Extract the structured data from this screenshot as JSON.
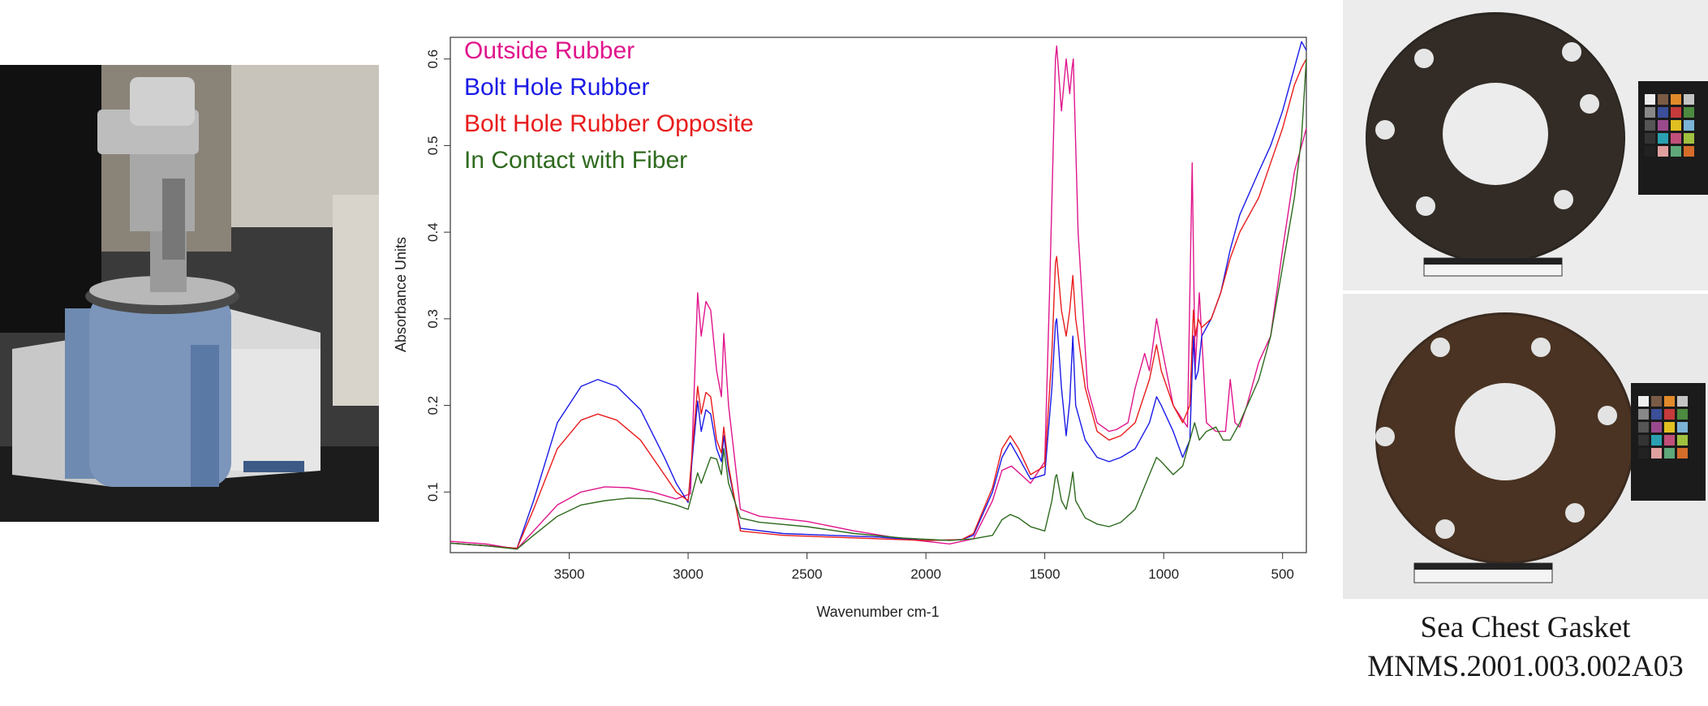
{
  "colors": {
    "outside": "#e0158c",
    "bolt": "#1a1ae6",
    "opposite": "#e81c1c",
    "fiber": "#2e6a1e"
  },
  "icons": {
    "left": "ftir-spectrometer-photo",
    "right_top": "gasket-front-photo",
    "right_bottom": "gasket-back-photo"
  },
  "caption": {
    "line1": "Sea Chest Gasket",
    "line2": "MNMS.2001.003.002A03"
  },
  "chart_data": {
    "type": "line",
    "xlabel": "Wavenumber cm-1",
    "ylabel": "Absorbance Units",
    "xlim": [
      4000,
      400
    ],
    "ylim": [
      0.03,
      0.625
    ],
    "x_reversed": true,
    "grid": false,
    "legend_position": "top-left",
    "x_ticks": [
      3500,
      3000,
      2500,
      2000,
      1500,
      1000,
      500
    ],
    "y_ticks": [
      0.1,
      0.2,
      0.3,
      0.4,
      0.5,
      0.6
    ],
    "series": [
      {
        "name": "Outside Rubber",
        "color": "#e0158c",
        "points": [
          [
            4000,
            0.043
          ],
          [
            3850,
            0.04
          ],
          [
            3720,
            0.034
          ],
          [
            3650,
            0.055
          ],
          [
            3550,
            0.085
          ],
          [
            3450,
            0.1
          ],
          [
            3350,
            0.106
          ],
          [
            3250,
            0.105
          ],
          [
            3150,
            0.1
          ],
          [
            3050,
            0.092
          ],
          [
            2990,
            0.098
          ],
          [
            2960,
            0.33
          ],
          [
            2945,
            0.28
          ],
          [
            2925,
            0.32
          ],
          [
            2905,
            0.31
          ],
          [
            2880,
            0.24
          ],
          [
            2860,
            0.21
          ],
          [
            2850,
            0.283
          ],
          [
            2830,
            0.2
          ],
          [
            2780,
            0.08
          ],
          [
            2700,
            0.072
          ],
          [
            2500,
            0.066
          ],
          [
            2300,
            0.055
          ],
          [
            2100,
            0.046
          ],
          [
            1900,
            0.04
          ],
          [
            1800,
            0.046
          ],
          [
            1720,
            0.09
          ],
          [
            1680,
            0.125
          ],
          [
            1640,
            0.13
          ],
          [
            1600,
            0.12
          ],
          [
            1560,
            0.11
          ],
          [
            1500,
            0.135
          ],
          [
            1480,
            0.33
          ],
          [
            1455,
            0.6
          ],
          [
            1450,
            0.615
          ],
          [
            1430,
            0.54
          ],
          [
            1410,
            0.6
          ],
          [
            1395,
            0.56
          ],
          [
            1385,
            0.59
          ],
          [
            1380,
            0.6
          ],
          [
            1360,
            0.4
          ],
          [
            1320,
            0.22
          ],
          [
            1280,
            0.18
          ],
          [
            1230,
            0.17
          ],
          [
            1200,
            0.172
          ],
          [
            1150,
            0.18
          ],
          [
            1120,
            0.22
          ],
          [
            1080,
            0.26
          ],
          [
            1060,
            0.24
          ],
          [
            1030,
            0.3
          ],
          [
            1010,
            0.27
          ],
          [
            960,
            0.2
          ],
          [
            900,
            0.175
          ],
          [
            880,
            0.48
          ],
          [
            868,
            0.24
          ],
          [
            850,
            0.33
          ],
          [
            820,
            0.18
          ],
          [
            780,
            0.17
          ],
          [
            740,
            0.17
          ],
          [
            720,
            0.23
          ],
          [
            700,
            0.18
          ],
          [
            680,
            0.175
          ],
          [
            650,
            0.2
          ],
          [
            600,
            0.25
          ],
          [
            550,
            0.28
          ],
          [
            500,
            0.38
          ],
          [
            450,
            0.47
          ],
          [
            400,
            0.52
          ]
        ]
      },
      {
        "name": "Bolt Hole Rubber",
        "color": "#1a1ae6",
        "points": [
          [
            4000,
            0.041
          ],
          [
            3850,
            0.038
          ],
          [
            3720,
            0.035
          ],
          [
            3650,
            0.09
          ],
          [
            3550,
            0.18
          ],
          [
            3450,
            0.222
          ],
          [
            3380,
            0.23
          ],
          [
            3300,
            0.222
          ],
          [
            3200,
            0.195
          ],
          [
            3100,
            0.14
          ],
          [
            3050,
            0.11
          ],
          [
            3000,
            0.088
          ],
          [
            2960,
            0.205
          ],
          [
            2945,
            0.17
          ],
          [
            2925,
            0.195
          ],
          [
            2905,
            0.19
          ],
          [
            2880,
            0.15
          ],
          [
            2860,
            0.135
          ],
          [
            2850,
            0.165
          ],
          [
            2830,
            0.125
          ],
          [
            2780,
            0.058
          ],
          [
            2600,
            0.052
          ],
          [
            2400,
            0.05
          ],
          [
            2200,
            0.048
          ],
          [
            2000,
            0.044
          ],
          [
            1850,
            0.045
          ],
          [
            1800,
            0.05
          ],
          [
            1720,
            0.1
          ],
          [
            1680,
            0.14
          ],
          [
            1645,
            0.157
          ],
          [
            1610,
            0.14
          ],
          [
            1560,
            0.115
          ],
          [
            1500,
            0.12
          ],
          [
            1470,
            0.22
          ],
          [
            1455,
            0.295
          ],
          [
            1450,
            0.3
          ],
          [
            1430,
            0.22
          ],
          [
            1410,
            0.165
          ],
          [
            1395,
            0.205
          ],
          [
            1382,
            0.28
          ],
          [
            1370,
            0.2
          ],
          [
            1330,
            0.16
          ],
          [
            1280,
            0.14
          ],
          [
            1230,
            0.135
          ],
          [
            1180,
            0.14
          ],
          [
            1120,
            0.15
          ],
          [
            1060,
            0.18
          ],
          [
            1030,
            0.21
          ],
          [
            1010,
            0.2
          ],
          [
            960,
            0.17
          ],
          [
            920,
            0.14
          ],
          [
            890,
            0.16
          ],
          [
            875,
            0.28
          ],
          [
            866,
            0.23
          ],
          [
            855,
            0.24
          ],
          [
            840,
            0.28
          ],
          [
            800,
            0.3
          ],
          [
            760,
            0.33
          ],
          [
            720,
            0.38
          ],
          [
            680,
            0.42
          ],
          [
            600,
            0.47
          ],
          [
            550,
            0.5
          ],
          [
            500,
            0.54
          ],
          [
            450,
            0.59
          ],
          [
            420,
            0.62
          ],
          [
            400,
            0.61
          ]
        ]
      },
      {
        "name": "Bolt Hole Rubber Opposite",
        "color": "#e81c1c",
        "points": [
          [
            4000,
            0.041
          ],
          [
            3850,
            0.038
          ],
          [
            3720,
            0.035
          ],
          [
            3650,
            0.08
          ],
          [
            3550,
            0.15
          ],
          [
            3450,
            0.183
          ],
          [
            3380,
            0.19
          ],
          [
            3300,
            0.183
          ],
          [
            3200,
            0.16
          ],
          [
            3100,
            0.12
          ],
          [
            3050,
            0.1
          ],
          [
            3000,
            0.09
          ],
          [
            2960,
            0.222
          ],
          [
            2945,
            0.19
          ],
          [
            2925,
            0.215
          ],
          [
            2905,
            0.21
          ],
          [
            2880,
            0.16
          ],
          [
            2860,
            0.145
          ],
          [
            2850,
            0.175
          ],
          [
            2830,
            0.13
          ],
          [
            2780,
            0.055
          ],
          [
            2600,
            0.05
          ],
          [
            2400,
            0.048
          ],
          [
            2200,
            0.046
          ],
          [
            2000,
            0.044
          ],
          [
            1850,
            0.045
          ],
          [
            1800,
            0.052
          ],
          [
            1720,
            0.105
          ],
          [
            1680,
            0.15
          ],
          [
            1645,
            0.165
          ],
          [
            1610,
            0.15
          ],
          [
            1560,
            0.12
          ],
          [
            1500,
            0.13
          ],
          [
            1470,
            0.26
          ],
          [
            1455,
            0.365
          ],
          [
            1450,
            0.372
          ],
          [
            1430,
            0.31
          ],
          [
            1410,
            0.28
          ],
          [
            1395,
            0.31
          ],
          [
            1382,
            0.35
          ],
          [
            1370,
            0.3
          ],
          [
            1330,
            0.22
          ],
          [
            1280,
            0.17
          ],
          [
            1230,
            0.16
          ],
          [
            1180,
            0.165
          ],
          [
            1120,
            0.18
          ],
          [
            1060,
            0.23
          ],
          [
            1030,
            0.27
          ],
          [
            1010,
            0.24
          ],
          [
            960,
            0.2
          ],
          [
            920,
            0.18
          ],
          [
            890,
            0.2
          ],
          [
            875,
            0.31
          ],
          [
            866,
            0.28
          ],
          [
            855,
            0.3
          ],
          [
            840,
            0.29
          ],
          [
            800,
            0.3
          ],
          [
            760,
            0.33
          ],
          [
            720,
            0.37
          ],
          [
            680,
            0.4
          ],
          [
            600,
            0.44
          ],
          [
            550,
            0.48
          ],
          [
            500,
            0.52
          ],
          [
            450,
            0.57
          ],
          [
            420,
            0.59
          ],
          [
            400,
            0.6
          ]
        ]
      },
      {
        "name": "In Contact with Fiber",
        "color": "#2e6a1e",
        "points": [
          [
            4000,
            0.041
          ],
          [
            3850,
            0.038
          ],
          [
            3720,
            0.034
          ],
          [
            3650,
            0.05
          ],
          [
            3550,
            0.072
          ],
          [
            3450,
            0.085
          ],
          [
            3350,
            0.09
          ],
          [
            3250,
            0.093
          ],
          [
            3150,
            0.092
          ],
          [
            3050,
            0.085
          ],
          [
            3000,
            0.08
          ],
          [
            2960,
            0.122
          ],
          [
            2945,
            0.11
          ],
          [
            2925,
            0.125
          ],
          [
            2905,
            0.14
          ],
          [
            2880,
            0.138
          ],
          [
            2860,
            0.12
          ],
          [
            2850,
            0.15
          ],
          [
            2830,
            0.11
          ],
          [
            2780,
            0.07
          ],
          [
            2700,
            0.065
          ],
          [
            2500,
            0.06
          ],
          [
            2300,
            0.052
          ],
          [
            2100,
            0.047
          ],
          [
            1900,
            0.044
          ],
          [
            1800,
            0.046
          ],
          [
            1720,
            0.05
          ],
          [
            1680,
            0.068
          ],
          [
            1645,
            0.074
          ],
          [
            1610,
            0.07
          ],
          [
            1560,
            0.06
          ],
          [
            1500,
            0.055
          ],
          [
            1470,
            0.09
          ],
          [
            1455,
            0.118
          ],
          [
            1450,
            0.12
          ],
          [
            1430,
            0.09
          ],
          [
            1410,
            0.08
          ],
          [
            1395,
            0.1
          ],
          [
            1382,
            0.123
          ],
          [
            1370,
            0.09
          ],
          [
            1330,
            0.07
          ],
          [
            1280,
            0.063
          ],
          [
            1230,
            0.06
          ],
          [
            1180,
            0.065
          ],
          [
            1120,
            0.08
          ],
          [
            1060,
            0.12
          ],
          [
            1030,
            0.14
          ],
          [
            1010,
            0.135
          ],
          [
            960,
            0.12
          ],
          [
            920,
            0.13
          ],
          [
            890,
            0.16
          ],
          [
            870,
            0.18
          ],
          [
            850,
            0.16
          ],
          [
            820,
            0.17
          ],
          [
            780,
            0.175
          ],
          [
            750,
            0.16
          ],
          [
            720,
            0.16
          ],
          [
            680,
            0.18
          ],
          [
            600,
            0.23
          ],
          [
            550,
            0.28
          ],
          [
            500,
            0.36
          ],
          [
            450,
            0.44
          ],
          [
            420,
            0.51
          ],
          [
            400,
            0.6
          ]
        ]
      }
    ]
  }
}
